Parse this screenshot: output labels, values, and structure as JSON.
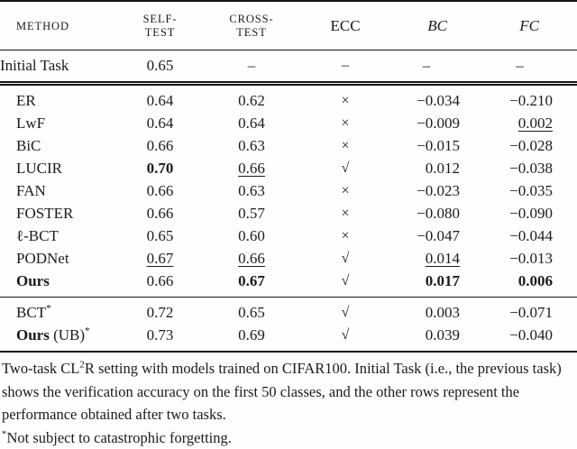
{
  "table": {
    "headers": [
      {
        "id": "method",
        "style": "smallcaps",
        "lines": [
          "METHOD"
        ]
      },
      {
        "id": "self_test",
        "style": "smallcaps",
        "lines": [
          "SELF-",
          "TEST"
        ]
      },
      {
        "id": "cross_test",
        "style": "smallcaps",
        "lines": [
          "CROSS-",
          "TEST"
        ]
      },
      {
        "id": "ecc",
        "style": "roman",
        "lines": [
          "ECC"
        ]
      },
      {
        "id": "bc",
        "style": "italic",
        "lines": [
          "BC"
        ]
      },
      {
        "id": "fc",
        "style": "italic",
        "lines": [
          "FC"
        ]
      }
    ],
    "ecc_symbols": {
      "check": "√",
      "cross": "×"
    },
    "sections": [
      {
        "name": "initial",
        "rows": [
          {
            "method": [
              {
                "t": "Initial Task"
              }
            ],
            "cells": {
              "self_test": {
                "t": "0.65"
              },
              "cross_test": {
                "t": "–",
                "dash": true
              },
              "ecc": {
                "t": "–",
                "dash": true
              },
              "bc": {
                "t": "–",
                "dash": true
              },
              "fc": {
                "t": "–",
                "dash": true
              }
            }
          }
        ]
      },
      {
        "name": "main",
        "rows": [
          {
            "method": [
              {
                "t": "ER"
              }
            ],
            "cells": {
              "self_test": {
                "t": "0.64"
              },
              "cross_test": {
                "t": "0.62"
              },
              "ecc": {
                "t": "×"
              },
              "bc": {
                "t": "−0.034"
              },
              "fc": {
                "t": "−0.210"
              }
            }
          },
          {
            "method": [
              {
                "t": "LwF"
              }
            ],
            "cells": {
              "self_test": {
                "t": "0.64"
              },
              "cross_test": {
                "t": "0.64"
              },
              "ecc": {
                "t": "×"
              },
              "bc": {
                "t": "−0.009"
              },
              "fc": {
                "t": "0.002",
                "underline": true
              }
            }
          },
          {
            "method": [
              {
                "t": "BiC"
              }
            ],
            "cells": {
              "self_test": {
                "t": "0.66"
              },
              "cross_test": {
                "t": "0.63"
              },
              "ecc": {
                "t": "×"
              },
              "bc": {
                "t": "−0.015"
              },
              "fc": {
                "t": "−0.028"
              }
            }
          },
          {
            "method": [
              {
                "t": "LUCIR"
              }
            ],
            "cells": {
              "self_test": {
                "t": "0.70",
                "bold": true
              },
              "cross_test": {
                "t": "0.66",
                "underline": true
              },
              "ecc": {
                "t": "√"
              },
              "bc": {
                "t": "0.012"
              },
              "fc": {
                "t": "−0.038"
              }
            }
          },
          {
            "method": [
              {
                "t": "FAN"
              }
            ],
            "cells": {
              "self_test": {
                "t": "0.66"
              },
              "cross_test": {
                "t": "0.63"
              },
              "ecc": {
                "t": "×"
              },
              "bc": {
                "t": "−0.023"
              },
              "fc": {
                "t": "−0.035"
              }
            }
          },
          {
            "method": [
              {
                "t": "FOSTER"
              }
            ],
            "cells": {
              "self_test": {
                "t": "0.66"
              },
              "cross_test": {
                "t": "0.57"
              },
              "ecc": {
                "t": "×"
              },
              "bc": {
                "t": "−0.080"
              },
              "fc": {
                "t": "−0.090"
              }
            }
          },
          {
            "method": [
              {
                "t": "ℓ-BCT"
              }
            ],
            "cells": {
              "self_test": {
                "t": "0.65"
              },
              "cross_test": {
                "t": "0.60"
              },
              "ecc": {
                "t": "×"
              },
              "bc": {
                "t": "−0.047"
              },
              "fc": {
                "t": "−0.044"
              }
            }
          },
          {
            "method": [
              {
                "t": "PODNet"
              }
            ],
            "cells": {
              "self_test": {
                "t": "0.67",
                "underline": true
              },
              "cross_test": {
                "t": "0.66",
                "underline": true
              },
              "ecc": {
                "t": "√"
              },
              "bc": {
                "t": "0.014",
                "underline": true
              },
              "fc": {
                "t": "−0.013"
              }
            }
          },
          {
            "method": [
              {
                "t": "Ours",
                "bold": true
              }
            ],
            "cells": {
              "self_test": {
                "t": "0.66"
              },
              "cross_test": {
                "t": "0.67",
                "bold": true
              },
              "ecc": {
                "t": "√"
              },
              "bc": {
                "t": "0.017",
                "bold": true
              },
              "fc": {
                "t": "0.006",
                "bold": true
              }
            }
          }
        ]
      },
      {
        "name": "no_forgetting",
        "rows": [
          {
            "method": [
              {
                "t": "BCT"
              },
              {
                "t": "*",
                "sup": true
              }
            ],
            "cells": {
              "self_test": {
                "t": "0.72"
              },
              "cross_test": {
                "t": "0.65"
              },
              "ecc": {
                "t": "√"
              },
              "bc": {
                "t": "0.003"
              },
              "fc": {
                "t": "−0.071"
              }
            }
          },
          {
            "method": [
              {
                "t": "Ours",
                "bold": true
              },
              {
                "t": " (UB)"
              },
              {
                "t": "*",
                "sup": true
              }
            ],
            "cells": {
              "self_test": {
                "t": "0.73"
              },
              "cross_test": {
                "t": "0.69"
              },
              "ecc": {
                "t": "√"
              },
              "bc": {
                "t": "0.039"
              },
              "fc": {
                "t": "−0.040"
              }
            }
          }
        ]
      }
    ]
  },
  "caption": {
    "parts": [
      {
        "t": "Two-task CL"
      },
      {
        "t": "2",
        "sup": true
      },
      {
        "t": "R setting with models trained on CIFAR100. Initial Task (i.e., the previous task) shows the verification accuracy on the first 50 classes, and the other rows represent the performance obtained after two tasks."
      }
    ]
  },
  "footnote": {
    "parts": [
      {
        "t": "*",
        "sup": true
      },
      {
        "t": "Not subject to catastrophic forgetting."
      }
    ]
  }
}
